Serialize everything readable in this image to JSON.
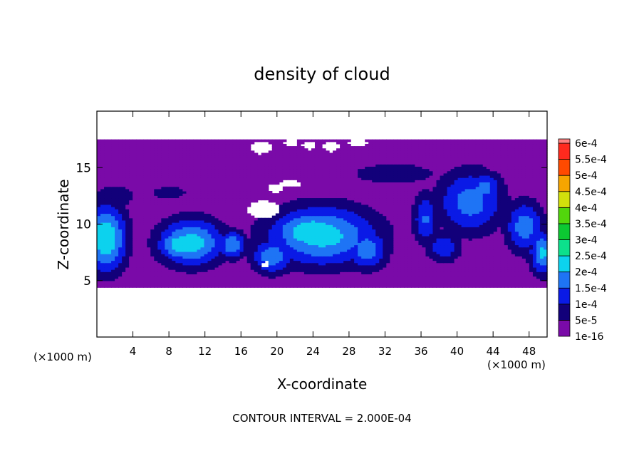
{
  "chart_data": {
    "type": "heatmap",
    "title": "density of cloud",
    "xlabel": "X-coordinate",
    "ylabel": "Z-coordinate",
    "x_unit_label": "(×1000 m)",
    "x_unit_label_right": "(×1000 m)",
    "footer": "CONTOUR INTERVAL = 2.000E-04",
    "xlim": [
      0,
      50
    ],
    "ylim": [
      0,
      20
    ],
    "x_ticks": [
      4,
      8,
      12,
      16,
      20,
      24,
      28,
      32,
      36,
      40,
      44,
      48
    ],
    "y_ticks": [
      5,
      10,
      15
    ],
    "colorbar": {
      "levels": [
        "1e-16",
        "5e-5",
        "1e-4",
        "1.5e-4",
        "2e-4",
        "2.5e-4",
        "3e-4",
        "3.5e-4",
        "4e-4",
        "4.5e-4",
        "5e-4",
        "5.5e-4",
        "6e-4"
      ],
      "colors": [
        "#7a0aa8",
        "#12007a",
        "#0a1ae6",
        "#1e74f5",
        "#0cd2ee",
        "#0ce08c",
        "#0cc832",
        "#52d60c",
        "#d2e00c",
        "#f5a500",
        "#ff4a00",
        "#ff2a1e",
        "#ff8080"
      ]
    },
    "cloud_layer": {
      "z_bottom": 4.4,
      "z_top": 17.5
    },
    "blobs": [
      {
        "x": 1.0,
        "z": 8.8,
        "rx": 2.6,
        "rz": 3.4,
        "level": 0.98
      },
      {
        "x": 0.5,
        "z": 9.0,
        "rx": 1.8,
        "rz": 2.2,
        "level": 1.0
      },
      {
        "x": 10.5,
        "z": 8.4,
        "rx": 4.2,
        "rz": 2.4,
        "level": 0.9
      },
      {
        "x": 9.5,
        "z": 8.2,
        "rx": 3.0,
        "rz": 1.6,
        "level": 1.0
      },
      {
        "x": 15.0,
        "z": 8.2,
        "rx": 1.8,
        "rz": 1.4,
        "level": 0.8
      },
      {
        "x": 25.0,
        "z": 9.0,
        "rx": 7.0,
        "rz": 3.0,
        "level": 0.9
      },
      {
        "x": 24.0,
        "z": 9.3,
        "rx": 5.2,
        "rz": 2.2,
        "level": 1.0
      },
      {
        "x": 19.5,
        "z": 7.2,
        "rx": 2.6,
        "rz": 1.8,
        "level": 0.75
      },
      {
        "x": 30.0,
        "z": 7.8,
        "rx": 2.6,
        "rz": 2.0,
        "level": 0.75
      },
      {
        "x": 36.5,
        "z": 10.5,
        "rx": 1.6,
        "rz": 2.6,
        "level": 0.62
      },
      {
        "x": 41.5,
        "z": 12.0,
        "rx": 4.2,
        "rz": 3.2,
        "level": 0.7
      },
      {
        "x": 43.0,
        "z": 13.2,
        "rx": 2.4,
        "rz": 1.6,
        "level": 0.68
      },
      {
        "x": 47.5,
        "z": 9.8,
        "rx": 2.4,
        "rz": 2.6,
        "level": 0.72
      },
      {
        "x": 49.5,
        "z": 7.5,
        "rx": 1.6,
        "rz": 2.2,
        "level": 0.85
      },
      {
        "x": 38.5,
        "z": 8.0,
        "rx": 2.2,
        "rz": 1.6,
        "level": 0.55
      },
      {
        "x": 33.0,
        "z": 14.5,
        "rx": 6.0,
        "rz": 1.2,
        "level": 0.35
      },
      {
        "x": 2.0,
        "z": 12.5,
        "rx": 2.6,
        "rz": 1.2,
        "level": 0.4
      },
      {
        "x": 8.0,
        "z": 12.8,
        "rx": 3.0,
        "rz": 0.9,
        "level": 0.3
      }
    ],
    "holes": [
      {
        "x": 18.5,
        "z": 11.3,
        "rx": 1.8,
        "rz": 0.8
      },
      {
        "x": 19.8,
        "z": 13.2,
        "rx": 0.9,
        "rz": 0.4
      },
      {
        "x": 21.5,
        "z": 13.6,
        "rx": 1.2,
        "rz": 0.35
      },
      {
        "x": 18.2,
        "z": 16.8,
        "rx": 1.2,
        "rz": 0.6
      },
      {
        "x": 23.5,
        "z": 17.0,
        "rx": 0.7,
        "rz": 0.4
      },
      {
        "x": 26.0,
        "z": 16.9,
        "rx": 0.9,
        "rz": 0.5
      },
      {
        "x": 21.5,
        "z": 17.2,
        "rx": 0.8,
        "rz": 0.3
      },
      {
        "x": 29.0,
        "z": 17.2,
        "rx": 1.2,
        "rz": 0.3
      },
      {
        "x": 18.8,
        "z": 6.4,
        "rx": 0.4,
        "rz": 0.3
      }
    ]
  }
}
